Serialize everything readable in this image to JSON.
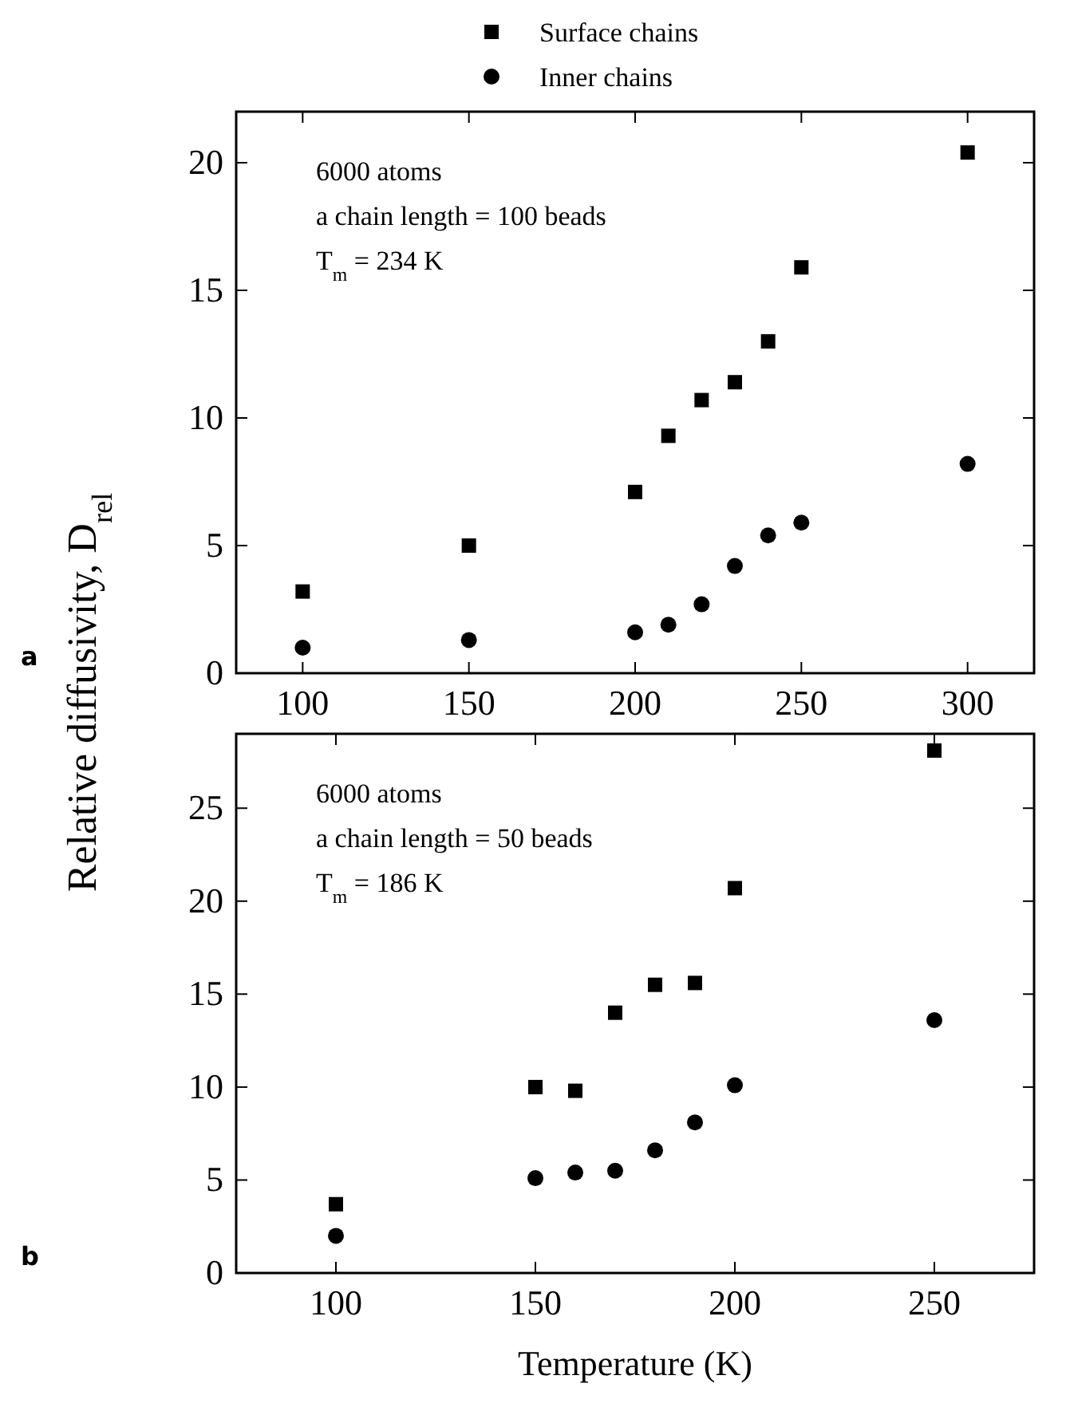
{
  "chart_data": [
    {
      "type": "scatter",
      "title": "a",
      "ylabel": "Relative diffusivity, D$_{rel}$",
      "legend": "top",
      "xlim": [
        80,
        320
      ],
      "ylim": [
        0,
        22
      ],
      "xticks": [
        100,
        150,
        200,
        250,
        300
      ],
      "yticks": [
        0,
        5,
        10,
        15,
        20
      ],
      "x": [
        100,
        150,
        200,
        210,
        220,
        230,
        240,
        250,
        300
      ],
      "annotations": [
        "6000 atoms",
        "a chain length = 100 beads",
        "T$_{m}$ = 234 K"
      ],
      "series": [
        {
          "name": "Surface chains",
          "color": "#000000",
          "marker": "square",
          "values": [
            3.2,
            5.0,
            7.1,
            9.3,
            10.7,
            11.4,
            13.0,
            15.9,
            20.4
          ]
        },
        {
          "name": "Inner chains",
          "color": "#000000",
          "marker": "circle",
          "values": [
            1.0,
            1.3,
            1.6,
            1.9,
            2.7,
            4.2,
            5.4,
            5.9,
            8.2
          ]
        }
      ]
    },
    {
      "type": "scatter",
      "title": "b",
      "xlabel": "Temperature (K)",
      "xlim": [
        75,
        275
      ],
      "ylim": [
        0,
        29
      ],
      "xticks": [
        100,
        150,
        200,
        250
      ],
      "yticks": [
        0,
        5,
        10,
        15,
        20,
        25
      ],
      "x": [
        100,
        150,
        160,
        170,
        180,
        190,
        200,
        250
      ],
      "annotations": [
        "6000 atoms",
        "a chain length = 50 beads",
        "T$_{m}$ = 186 K"
      ],
      "series": [
        {
          "color": "#000000",
          "marker": "square",
          "values": [
            3.7,
            10.0,
            9.8,
            14.0,
            15.5,
            15.6,
            20.7,
            28.1
          ]
        },
        {
          "color": "#000000",
          "marker": "circle",
          "values": [
            2.0,
            5.1,
            5.4,
            5.5,
            6.6,
            8.1,
            10.1,
            13.6
          ]
        }
      ]
    }
  ]
}
